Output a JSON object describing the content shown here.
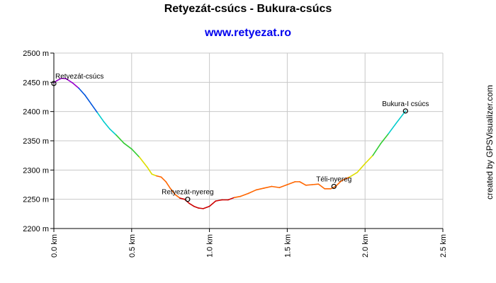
{
  "header": {
    "title": "Retyezát-csúcs - Bukura-csúcs",
    "subtitle": "www.retyezat.ro",
    "credit": "created by GPSVisualizer.com"
  },
  "colors": {
    "subtitle": "#0000ee",
    "grid": "#c8c8c8",
    "ramp": [
      "#cc0000",
      "#ff6600",
      "#dddd00",
      "#33cc33",
      "#00cccc",
      "#0055dd",
      "#9900cc"
    ]
  },
  "chart_data": {
    "type": "line",
    "title": "Retyezát-csúcs - Bukura-csúcs",
    "subtitle": "www.retyezat.ro",
    "xlabel": "",
    "ylabel": "",
    "x_unit": "km",
    "y_unit": "m",
    "xlim": [
      0,
      2.5
    ],
    "ylim": [
      2200,
      2500
    ],
    "grid": true,
    "color_by_elevation": true,
    "x_ticks": [
      "0.0 km",
      "0.5 km",
      "1.0 km",
      "1.5 km",
      "2.0 km",
      "2.5 km"
    ],
    "y_ticks": [
      "2200 m",
      "2250 m",
      "2300 m",
      "2350 m",
      "2400 m",
      "2450 m",
      "2500 m"
    ],
    "series": [
      {
        "x": [
          0.0,
          0.02,
          0.05,
          0.08,
          0.12,
          0.16,
          0.2,
          0.24,
          0.28,
          0.32,
          0.36,
          0.4,
          0.45,
          0.5,
          0.55,
          0.6,
          0.63,
          0.66,
          0.69,
          0.72,
          0.75,
          0.78,
          0.81,
          0.84,
          0.87,
          0.9,
          0.93,
          0.96,
          1.0,
          1.04,
          1.08,
          1.12,
          1.16,
          1.2,
          1.25,
          1.3,
          1.35,
          1.4,
          1.45,
          1.5,
          1.55,
          1.58,
          1.62,
          1.66,
          1.7,
          1.74,
          1.78,
          1.81,
          1.85,
          1.9,
          1.95,
          2.0,
          2.05,
          2.1,
          2.15,
          2.2,
          2.26
        ],
        "y": [
          2449,
          2453,
          2457,
          2456,
          2449,
          2440,
          2428,
          2413,
          2398,
          2383,
          2370,
          2360,
          2346,
          2336,
          2322,
          2305,
          2293,
          2290,
          2288,
          2280,
          2268,
          2258,
          2252,
          2250,
          2243,
          2238,
          2235,
          2234,
          2238,
          2247,
          2249,
          2249,
          2253,
          2255,
          2260,
          2266,
          2269,
          2272,
          2270,
          2275,
          2280,
          2280,
          2274,
          2275,
          2276,
          2268,
          2268,
          2272,
          2282,
          2288,
          2296,
          2311,
          2325,
          2345,
          2362,
          2380,
          2401
        ]
      }
    ],
    "annotations": [
      {
        "label": "Retyezát-csúcs",
        "x": 0.0,
        "y": 2448
      },
      {
        "label": "Retyezát-nyereg",
        "x": 0.86,
        "y": 2250
      },
      {
        "label": "Téli-nyereg",
        "x": 1.8,
        "y": 2272
      },
      {
        "label": "Bukura-I csúcs",
        "x": 2.26,
        "y": 2401
      }
    ]
  }
}
